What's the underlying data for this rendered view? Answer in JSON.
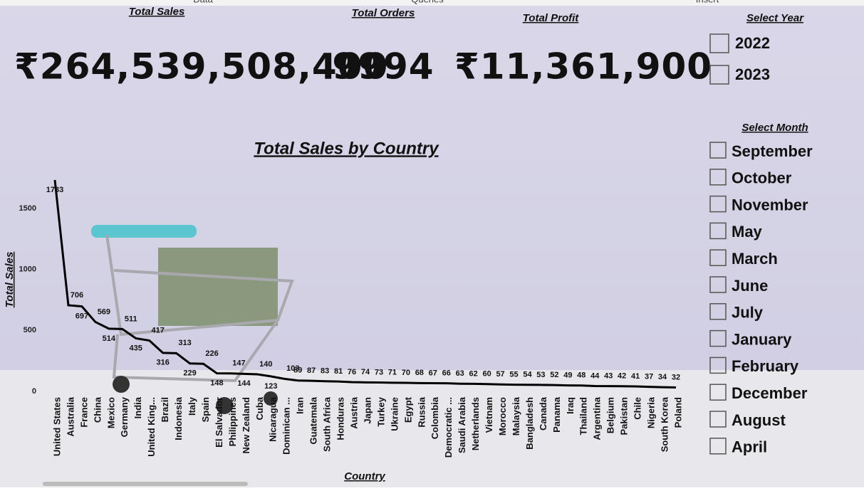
{
  "ribbon": [
    "Data",
    "Queries",
    "Insert"
  ],
  "kpis": [
    {
      "title": "Total Sales",
      "value": "₹264,539,508,400"
    },
    {
      "title": "Total Orders",
      "value": "9994"
    },
    {
      "title": "Total Profit",
      "value": "₹11,361,900"
    }
  ],
  "slicers": {
    "year": {
      "title": "Select Year",
      "options": [
        "2022",
        "2023"
      ]
    },
    "month": {
      "title": "Select Month",
      "options": [
        "September",
        "October",
        "November",
        "May",
        "March",
        "June",
        "July",
        "January",
        "February",
        "December",
        "August",
        "April"
      ]
    }
  },
  "chart_data": {
    "type": "line",
    "title": "Total Sales by Country",
    "x_label": "Country",
    "y_label": "Total Sales",
    "categories": [
      "United States",
      "Australia",
      "France",
      "China",
      "Mexico",
      "Germany",
      "India",
      "United King...",
      "Brazil",
      "Indonesia",
      "Italy",
      "Spain",
      "El Salvador",
      "Philippines",
      "New Zealand",
      "Cuba",
      "Nicaragua",
      "Dominican ...",
      "Iran",
      "Guatemala",
      "South Africa",
      "Honduras",
      "Austria",
      "Japan",
      "Turkey",
      "Ukraine",
      "Egypt",
      "Russia",
      "Colombia",
      "Democratic ...",
      "Saudi Arabia",
      "Netherlands",
      "Vietnam",
      "Morocco",
      "Malaysia",
      "Bangladesh",
      "Canada",
      "Panama",
      "Iraq",
      "Thailand",
      "Argentina",
      "Belgium",
      "Pakistan",
      "Chile",
      "Nigeria",
      "South Korea",
      "Poland"
    ],
    "values": [
      1733,
      706,
      697,
      569,
      514,
      511,
      435,
      417,
      316,
      313,
      229,
      226,
      148,
      147,
      144,
      140,
      123,
      103,
      89,
      87,
      83,
      81,
      76,
      74,
      73,
      71,
      70,
      68,
      67,
      66,
      63,
      62,
      60,
      57,
      55,
      54,
      53,
      52,
      49,
      48,
      44,
      43,
      42,
      41,
      37,
      34,
      32
    ],
    "color": "#000000",
    "ylim": [
      0,
      1750
    ],
    "yticks": [
      0,
      500,
      1000,
      1500
    ],
    "grid": false
  }
}
